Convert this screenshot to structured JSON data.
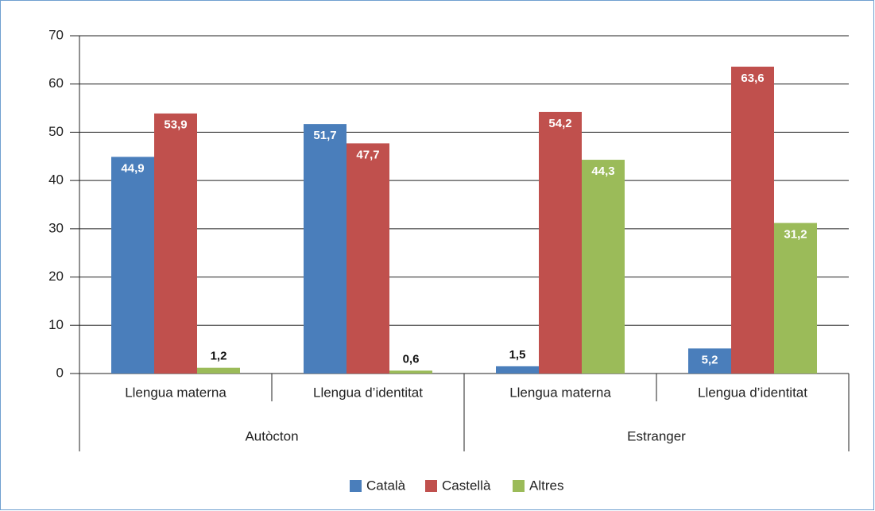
{
  "chart_data": {
    "type": "bar",
    "categories": [
      "Llengua materna",
      "Llengua d’identitat",
      "Llengua materna",
      "Llengua d’identitat"
    ],
    "groups": [
      "Autòcton",
      "Estranger"
    ],
    "series": [
      {
        "name": "Català",
        "color": "#4a7ebb",
        "values": [
          44.9,
          51.7,
          1.5,
          5.2
        ],
        "value_labels": [
          "44,9",
          "51,7",
          "1,5",
          "5,2"
        ]
      },
      {
        "name": "Castellà",
        "color": "#c0504d",
        "values": [
          53.9,
          47.7,
          54.2,
          63.6
        ],
        "value_labels": [
          "53,9",
          "47,7",
          "54,2",
          "63,6"
        ]
      },
      {
        "name": "Altres",
        "color": "#9bbb59",
        "values": [
          1.2,
          0.6,
          44.3,
          31.2
        ],
        "value_labels": [
          "1,2",
          "0,6",
          "44,3",
          "31,2"
        ]
      }
    ],
    "ylim": [
      0,
      70
    ],
    "yticks": [
      0,
      10,
      20,
      30,
      40,
      50,
      60,
      70
    ],
    "grid": true,
    "legend": "bottom"
  }
}
